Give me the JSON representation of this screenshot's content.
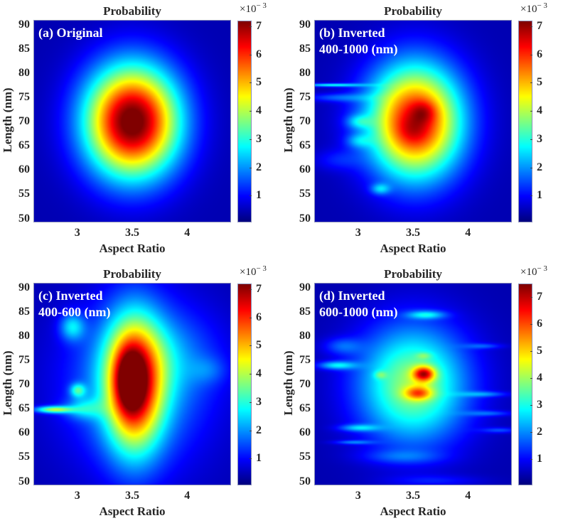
{
  "figure": {
    "colormap": "jet",
    "colors": {
      "background": "#ffffff",
      "text": "#262626",
      "panel_label": "#ffffff",
      "axes_border": "#8a8fb8"
    }
  },
  "chart_data": [
    {
      "type": "heatmap",
      "panel": "a",
      "title": "Probability",
      "panel_label": "(a) Original",
      "xlabel": "Aspect Ratio",
      "ylabel": "Length (nm)",
      "xlim": [
        2.6,
        4.4
      ],
      "ylim": [
        49.2,
        91
      ],
      "xticks": [
        "3",
        "3.5",
        "4"
      ],
      "xtick_values": [
        3,
        3.5,
        4
      ],
      "yticks": [
        "90",
        "85",
        "80",
        "75",
        "70",
        "65",
        "60",
        "55",
        "50"
      ],
      "ytick_values": [
        90,
        85,
        80,
        75,
        70,
        65,
        60,
        55,
        50
      ],
      "colorbar": {
        "scale_base": "×10",
        "scale_exp": "− 3",
        "ticks": [
          "7",
          "6",
          "5",
          "4",
          "3",
          "2",
          "1"
        ],
        "tick_values": [
          7,
          6,
          5,
          4,
          3,
          2,
          1
        ],
        "range": [
          0.05,
          7.2
        ]
      },
      "peak": {
        "x": 3.5,
        "y": 70,
        "value": 7.2
      },
      "blobs": [
        {
          "x": 3.5,
          "y": 70,
          "sx": 0.3,
          "sy": 8.0,
          "amp": 7.15
        }
      ]
    },
    {
      "type": "heatmap",
      "panel": "b",
      "title": "Probability",
      "panel_label": "(b) Inverted\n400-1000 (nm)",
      "xlabel": "Aspect Ratio",
      "ylabel": "Length (nm)",
      "xlim": [
        2.6,
        4.4
      ],
      "ylim": [
        49.2,
        91
      ],
      "xticks": [
        "3",
        "3.5",
        "4"
      ],
      "xtick_values": [
        3,
        3.5,
        4
      ],
      "yticks": [
        "90",
        "85",
        "80",
        "75",
        "70",
        "65",
        "60",
        "55",
        "50"
      ],
      "ytick_values": [
        90,
        85,
        80,
        75,
        70,
        65,
        60,
        55,
        50
      ],
      "colorbar": {
        "scale_base": "×10",
        "scale_exp": "− 3",
        "ticks": [
          "7",
          "6",
          "5",
          "4",
          "3",
          "2",
          "1"
        ],
        "tick_values": [
          7,
          6,
          5,
          4,
          3,
          2,
          1
        ],
        "range": [
          0.05,
          7.2
        ]
      },
      "peak": {
        "x": 3.6,
        "y": 72,
        "value": 7.0
      },
      "blobs": [
        {
          "x": 3.52,
          "y": 70,
          "sx": 0.3,
          "sy": 8.2,
          "amp": 6.1
        },
        {
          "x": 3.6,
          "y": 72,
          "sx": 0.08,
          "sy": 1.6,
          "amp": 0.9
        },
        {
          "x": 3.5,
          "y": 68,
          "sx": 0.1,
          "sy": 2.0,
          "amp": 0.5
        },
        {
          "x": 3.2,
          "y": 56,
          "sx": 0.06,
          "sy": 0.8,
          "amp": 1.4
        },
        {
          "x": 2.75,
          "y": 77.6,
          "sx": 0.2,
          "sy": 0.25,
          "amp": 2.2
        },
        {
          "x": 2.8,
          "y": 75,
          "sx": 0.2,
          "sy": 0.6,
          "amp": 1.0
        },
        {
          "x": 3.0,
          "y": 70,
          "sx": 0.08,
          "sy": 1.0,
          "amp": 1.2
        },
        {
          "x": 3.0,
          "y": 66,
          "sx": 0.08,
          "sy": 1.0,
          "amp": 1.0
        },
        {
          "x": 2.8,
          "y": 62,
          "sx": 0.15,
          "sy": 1.5,
          "amp": 0.6
        }
      ]
    },
    {
      "type": "heatmap",
      "panel": "c",
      "title": "Probability",
      "panel_label": "(c) Inverted\n400-600 (nm)",
      "xlabel": "Aspect Ratio",
      "ylabel": "Length (nm)",
      "xlim": [
        2.6,
        4.4
      ],
      "ylim": [
        49.2,
        91
      ],
      "xticks": [
        "3",
        "3.5",
        "4"
      ],
      "xtick_values": [
        3,
        3.5,
        4
      ],
      "yticks": [
        "90",
        "85",
        "80",
        "75",
        "70",
        "65",
        "60",
        "55",
        "50"
      ],
      "ytick_values": [
        90,
        85,
        80,
        75,
        70,
        65,
        60,
        55,
        50
      ],
      "colorbar": {
        "scale_base": "×10",
        "scale_exp": "− 3",
        "ticks": [
          "7",
          "6",
          "5",
          "4",
          "3",
          "2",
          "1"
        ],
        "tick_values": [
          7,
          6,
          5,
          4,
          3,
          2,
          1
        ],
        "range": [
          0.05,
          7.2
        ]
      },
      "peak": {
        "x": 3.45,
        "y": 71,
        "value": 7.1
      },
      "blobs": [
        {
          "x": 3.52,
          "y": 70,
          "sx": 0.18,
          "sy": 9.5,
          "amp": 5.2
        },
        {
          "x": 3.47,
          "y": 71,
          "sx": 0.09,
          "sy": 4.5,
          "amp": 1.9
        },
        {
          "x": 3.55,
          "y": 70,
          "sx": 0.45,
          "sy": 12.0,
          "amp": 1.8
        },
        {
          "x": 3.8,
          "y": 76,
          "sx": 0.35,
          "sy": 6.0,
          "amp": 0.7
        },
        {
          "x": 2.95,
          "y": 82,
          "sx": 0.08,
          "sy": 2.0,
          "amp": 1.8
        },
        {
          "x": 3.0,
          "y": 68.8,
          "sx": 0.05,
          "sy": 1.0,
          "amp": 2.0
        },
        {
          "x": 2.78,
          "y": 64.8,
          "sx": 0.12,
          "sy": 0.5,
          "amp": 3.2
        },
        {
          "x": 3.05,
          "y": 65,
          "sx": 0.12,
          "sy": 1.5,
          "amp": 1.4
        },
        {
          "x": 4.2,
          "y": 73,
          "sx": 0.12,
          "sy": 2.0,
          "amp": 0.6
        }
      ]
    },
    {
      "type": "heatmap",
      "panel": "d",
      "title": "Probability",
      "panel_label": "(d) Inverted\n600-1000 (nm)",
      "xlabel": "Aspect Ratio",
      "ylabel": "Length (nm)",
      "xlim": [
        2.6,
        4.4
      ],
      "ylim": [
        49.2,
        91
      ],
      "xticks": [
        "3",
        "3.5",
        "4"
      ],
      "xtick_values": [
        3,
        3.5,
        4
      ],
      "yticks": [
        "90",
        "85",
        "80",
        "75",
        "70",
        "65",
        "60",
        "55",
        "50"
      ],
      "ytick_values": [
        90,
        85,
        80,
        75,
        70,
        65,
        60,
        55,
        50
      ],
      "colorbar": {
        "scale_base": "×10",
        "scale_exp": "− 3",
        "ticks": [
          "7",
          "6",
          "5",
          "4",
          "3",
          "2",
          "1"
        ],
        "tick_values": [
          7,
          6,
          5,
          4,
          3,
          2,
          1
        ],
        "range": [
          0.03,
          7.5
        ]
      },
      "peak": {
        "x": 3.6,
        "y": 72.2,
        "value": 7.5
      },
      "blobs": [
        {
          "x": 3.5,
          "y": 70,
          "sx": 0.35,
          "sy": 8.5,
          "amp": 3.6
        },
        {
          "x": 3.6,
          "y": 72.2,
          "sx": 0.07,
          "sy": 1.1,
          "amp": 3.6
        },
        {
          "x": 3.55,
          "y": 68.2,
          "sx": 0.09,
          "sy": 1.0,
          "amp": 2.4
        },
        {
          "x": 3.2,
          "y": 72,
          "sx": 0.04,
          "sy": 0.6,
          "amp": 1.0
        },
        {
          "x": 3.6,
          "y": 76,
          "sx": 0.05,
          "sy": 0.5,
          "amp": 0.8
        },
        {
          "x": 3.62,
          "y": 84.5,
          "sx": 0.12,
          "sy": 0.6,
          "amp": 1.8
        },
        {
          "x": 2.8,
          "y": 74,
          "sx": 0.12,
          "sy": 0.6,
          "amp": 2.0
        },
        {
          "x": 2.85,
          "y": 78,
          "sx": 0.12,
          "sy": 1.2,
          "amp": 1.0
        },
        {
          "x": 3.0,
          "y": 61,
          "sx": 0.12,
          "sy": 0.5,
          "amp": 1.6
        },
        {
          "x": 2.95,
          "y": 58,
          "sx": 0.12,
          "sy": 0.3,
          "amp": 1.2
        },
        {
          "x": 3.4,
          "y": 55,
          "sx": 0.25,
          "sy": 1.0,
          "amp": 0.8
        },
        {
          "x": 4.15,
          "y": 68,
          "sx": 0.15,
          "sy": 0.4,
          "amp": 1.2
        },
        {
          "x": 4.2,
          "y": 64,
          "sx": 0.15,
          "sy": 0.4,
          "amp": 1.0
        },
        {
          "x": 4.3,
          "y": 60.5,
          "sx": 0.12,
          "sy": 0.4,
          "amp": 1.0
        },
        {
          "x": 4.15,
          "y": 78,
          "sx": 0.12,
          "sy": 0.4,
          "amp": 0.9
        },
        {
          "x": 3.7,
          "y": 50,
          "sx": 0.3,
          "sy": 0.8,
          "amp": 0.6
        }
      ]
    }
  ]
}
